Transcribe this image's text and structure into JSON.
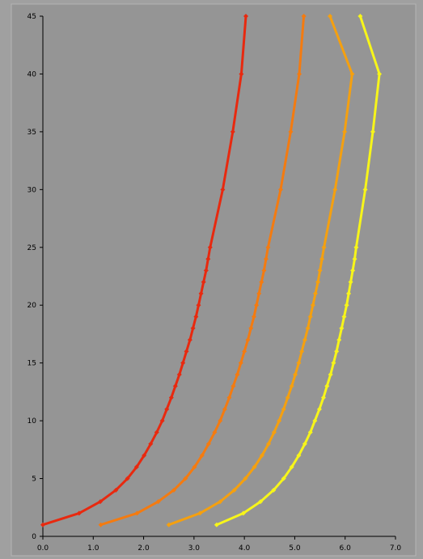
{
  "chart_data": {
    "type": "line",
    "title": "",
    "xlabel": "",
    "ylabel": "",
    "xlim": [
      0,
      7
    ],
    "ylim": [
      0,
      45
    ],
    "x_ticks": [
      "0.0",
      "1.0",
      "2.0",
      "3.0",
      "4.0",
      "5.0",
      "6.0",
      "7.0"
    ],
    "y_ticks": [
      "0",
      "5",
      "10",
      "15",
      "20",
      "25",
      "30",
      "35",
      "40",
      "45"
    ],
    "grid": false,
    "legend": "none",
    "colors": {
      "chart_background": "#959595",
      "outer_background": "#a0a0a0",
      "axis": "#000000"
    },
    "series": [
      {
        "color": "#e8290f",
        "points": [
          [
            0.0,
            1
          ],
          [
            0.72,
            2
          ],
          [
            1.14,
            3
          ],
          [
            1.45,
            4
          ],
          [
            1.68,
            5
          ],
          [
            1.86,
            6
          ],
          [
            2.01,
            7
          ],
          [
            2.14,
            8
          ],
          [
            2.26,
            9
          ],
          [
            2.37,
            10
          ],
          [
            2.46,
            11
          ],
          [
            2.55,
            12
          ],
          [
            2.63,
            13
          ],
          [
            2.71,
            14
          ],
          [
            2.78,
            15
          ],
          [
            2.85,
            16
          ],
          [
            2.92,
            17
          ],
          [
            2.98,
            18
          ],
          [
            3.04,
            19
          ],
          [
            3.09,
            20
          ],
          [
            3.14,
            21
          ],
          [
            3.19,
            22
          ],
          [
            3.24,
            23
          ],
          [
            3.28,
            24
          ],
          [
            3.32,
            25
          ],
          [
            3.57,
            30
          ],
          [
            3.77,
            35
          ],
          [
            3.94,
            40
          ],
          [
            4.03,
            45
          ]
        ]
      },
      {
        "color": "#f47b10",
        "points": [
          [
            1.15,
            1
          ],
          [
            1.87,
            2
          ],
          [
            2.29,
            3
          ],
          [
            2.6,
            4
          ],
          [
            2.83,
            5
          ],
          [
            3.01,
            6
          ],
          [
            3.16,
            7
          ],
          [
            3.29,
            8
          ],
          [
            3.41,
            9
          ],
          [
            3.52,
            10
          ],
          [
            3.61,
            11
          ],
          [
            3.7,
            12
          ],
          [
            3.78,
            13
          ],
          [
            3.86,
            14
          ],
          [
            3.93,
            15
          ],
          [
            4.0,
            16
          ],
          [
            4.07,
            17
          ],
          [
            4.13,
            18
          ],
          [
            4.19,
            19
          ],
          [
            4.24,
            20
          ],
          [
            4.29,
            21
          ],
          [
            4.34,
            22
          ],
          [
            4.39,
            23
          ],
          [
            4.43,
            24
          ],
          [
            4.47,
            25
          ],
          [
            4.72,
            30
          ],
          [
            4.92,
            35
          ],
          [
            5.09,
            40
          ],
          [
            5.18,
            45
          ]
        ]
      },
      {
        "color": "#f5a00f",
        "points": [
          [
            2.5,
            1
          ],
          [
            3.12,
            2
          ],
          [
            3.52,
            3
          ],
          [
            3.8,
            4
          ],
          [
            4.02,
            5
          ],
          [
            4.2,
            6
          ],
          [
            4.35,
            7
          ],
          [
            4.48,
            8
          ],
          [
            4.59,
            9
          ],
          [
            4.69,
            10
          ],
          [
            4.78,
            11
          ],
          [
            4.86,
            12
          ],
          [
            4.94,
            13
          ],
          [
            5.01,
            14
          ],
          [
            5.08,
            15
          ],
          [
            5.14,
            16
          ],
          [
            5.2,
            17
          ],
          [
            5.26,
            18
          ],
          [
            5.31,
            19
          ],
          [
            5.36,
            20
          ],
          [
            5.41,
            21
          ],
          [
            5.46,
            22
          ],
          [
            5.5,
            23
          ],
          [
            5.54,
            24
          ],
          [
            5.58,
            25
          ],
          [
            5.8,
            30
          ],
          [
            5.99,
            35
          ],
          [
            6.14,
            40
          ],
          [
            5.7,
            45
          ]
        ]
      },
      {
        "color": "#f7f51a",
        "points": [
          [
            3.45,
            1
          ],
          [
            3.98,
            2
          ],
          [
            4.32,
            3
          ],
          [
            4.58,
            4
          ],
          [
            4.78,
            5
          ],
          [
            4.94,
            6
          ],
          [
            5.08,
            7
          ],
          [
            5.2,
            8
          ],
          [
            5.31,
            9
          ],
          [
            5.4,
            10
          ],
          [
            5.49,
            11
          ],
          [
            5.57,
            12
          ],
          [
            5.64,
            13
          ],
          [
            5.71,
            14
          ],
          [
            5.77,
            15
          ],
          [
            5.83,
            16
          ],
          [
            5.88,
            17
          ],
          [
            5.93,
            18
          ],
          [
            5.98,
            19
          ],
          [
            6.03,
            20
          ],
          [
            6.07,
            21
          ],
          [
            6.11,
            22
          ],
          [
            6.15,
            23
          ],
          [
            6.19,
            24
          ],
          [
            6.22,
            25
          ],
          [
            6.4,
            30
          ],
          [
            6.55,
            35
          ],
          [
            6.68,
            40
          ],
          [
            6.3,
            45
          ]
        ]
      }
    ]
  }
}
